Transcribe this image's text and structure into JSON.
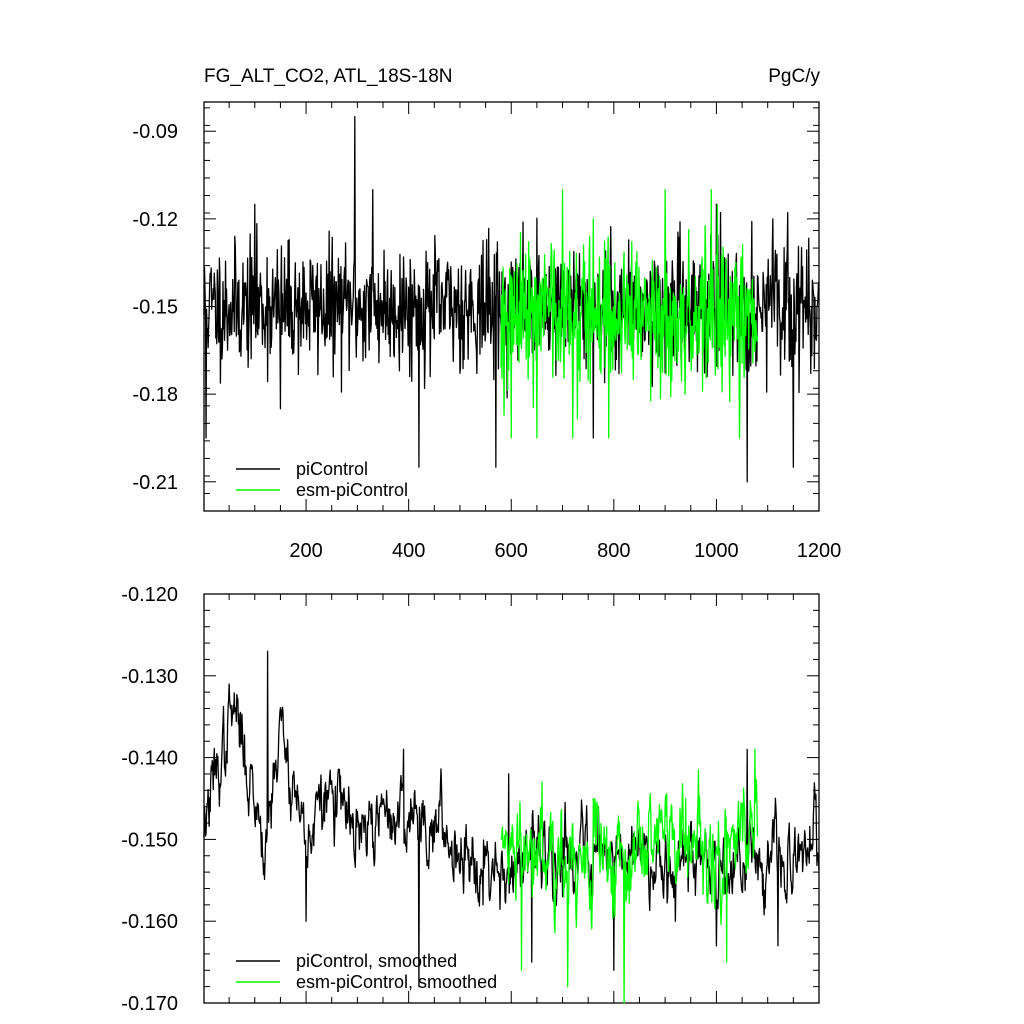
{
  "chart_data": [
    {
      "type": "line",
      "title_left": "FG_ALT_CO2, ATL_18S-18N",
      "title_right": "PgC/y",
      "xlim": [
        1,
        1200
      ],
      "ylim": [
        -0.22,
        -0.08
      ],
      "x_ticks": [
        200,
        400,
        600,
        800,
        1000,
        1200
      ],
      "x_tick_labels": [
        "200",
        "400",
        "600",
        "800",
        "1000",
        "1200"
      ],
      "y_ticks": [
        -0.09,
        -0.12,
        -0.15,
        -0.18,
        -0.21
      ],
      "y_tick_labels": [
        "-0.09",
        "-0.12",
        "-0.15",
        "-0.18",
        "-0.21"
      ],
      "legend_position": "bottom-left",
      "series": [
        {
          "name": "piControl",
          "color": "#000000",
          "x_start": 1,
          "x_end": 1200,
          "mean": -0.15,
          "amplitude": 0.013,
          "highlights": [
            [
              5,
              -0.195
            ],
            [
              100,
              -0.115
            ],
            [
              150,
              -0.185
            ],
            [
              295,
              -0.085
            ],
            [
              330,
              -0.11
            ],
            [
              420,
              -0.205
            ],
            [
              570,
              -0.205
            ],
            [
              760,
              -0.195
            ],
            [
              1000,
              -0.115
            ],
            [
              1060,
              -0.21
            ],
            [
              1110,
              -0.12
            ],
            [
              1150,
              -0.205
            ]
          ]
        },
        {
          "name": "esm-piControl",
          "color": "#00ff00",
          "x_start": 580,
          "x_end": 1080,
          "mean": -0.152,
          "amplitude": 0.016,
          "highlights": [
            [
              600,
              -0.195
            ],
            [
              650,
              -0.195
            ],
            [
              700,
              -0.11
            ],
            [
              720,
              -0.195
            ],
            [
              760,
              -0.12
            ],
            [
              790,
              -0.195
            ],
            [
              900,
              -0.11
            ],
            [
              990,
              -0.11
            ],
            [
              1045,
              -0.195
            ]
          ]
        }
      ]
    },
    {
      "type": "line",
      "xlim": [
        1,
        1200
      ],
      "ylim": [
        -0.17,
        -0.12
      ],
      "x_ticks": [
        200,
        400,
        600,
        800,
        1000,
        1200
      ],
      "y_ticks": [
        -0.12,
        -0.13,
        -0.14,
        -0.15,
        -0.16,
        -0.17
      ],
      "y_tick_labels": [
        "-0.120",
        "-0.130",
        "-0.140",
        "-0.150",
        "-0.160",
        "-0.170"
      ],
      "legend_position": "bottom-left",
      "series": [
        {
          "name": "piControl, smoothed",
          "color": "#000000",
          "x_start": 1,
          "x_end": 1200,
          "trend": [
            [
              1,
              -0.148
            ],
            [
              60,
              -0.134
            ],
            [
              100,
              -0.145
            ],
            [
              120,
              -0.15
            ],
            [
              150,
              -0.136
            ],
            [
              200,
              -0.15
            ],
            [
              250,
              -0.144
            ],
            [
              300,
              -0.15
            ],
            [
              360,
              -0.147
            ],
            [
              420,
              -0.147
            ],
            [
              480,
              -0.15
            ],
            [
              540,
              -0.152
            ],
            [
              600,
              -0.154
            ],
            [
              700,
              -0.151
            ],
            [
              800,
              -0.151
            ],
            [
              900,
              -0.152
            ],
            [
              1000,
              -0.153
            ],
            [
              1100,
              -0.152
            ],
            [
              1150,
              -0.154
            ],
            [
              1200,
              -0.149
            ]
          ],
          "amplitude": 0.003,
          "highlights": [
            [
              50,
              -0.131
            ],
            [
              125,
              -0.127
            ],
            [
              200,
              -0.16
            ],
            [
              390,
              -0.139
            ],
            [
              420,
              -0.168
            ],
            [
              545,
              -0.158
            ],
            [
              595,
              -0.142
            ],
            [
              640,
              -0.165
            ],
            [
              700,
              -0.157
            ],
            [
              800,
              -0.166
            ],
            [
              920,
              -0.16
            ],
            [
              1000,
              -0.163
            ],
            [
              1060,
              -0.139
            ],
            [
              1120,
              -0.163
            ]
          ]
        },
        {
          "name": "esm-piControl, smoothed",
          "color": "#00ff00",
          "x_start": 580,
          "x_end": 1080,
          "trend": [
            [
              580,
              -0.151
            ],
            [
              700,
              -0.153
            ],
            [
              800,
              -0.151
            ],
            [
              900,
              -0.151
            ],
            [
              1000,
              -0.151
            ],
            [
              1080,
              -0.147
            ]
          ],
          "amplitude": 0.004,
          "highlights": [
            [
              620,
              -0.166
            ],
            [
              660,
              -0.143
            ],
            [
              710,
              -0.168
            ],
            [
              760,
              -0.145
            ],
            [
              820,
              -0.17
            ],
            [
              870,
              -0.146
            ],
            [
              940,
              -0.145
            ],
            [
              1020,
              -0.165
            ],
            [
              1075,
              -0.139
            ]
          ]
        }
      ]
    }
  ]
}
